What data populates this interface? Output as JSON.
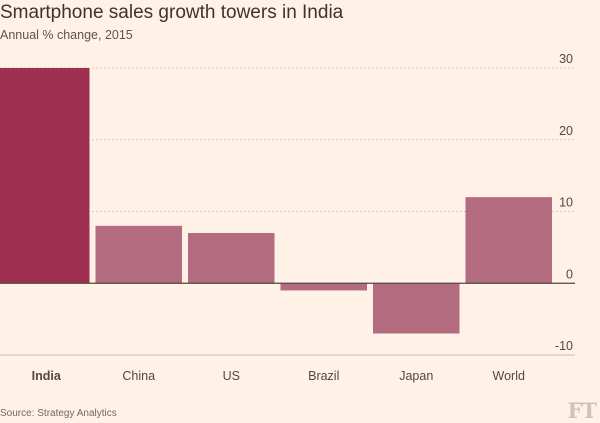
{
  "header": {
    "title": "Smartphone sales growth towers in India",
    "subtitle": "Annual % change, 2015"
  },
  "footer": {
    "source": "Source: Strategy Analytics",
    "logo": "FT"
  },
  "colors": {
    "background": "#fff1e5",
    "highlight_bar": "#9e2f50",
    "bar": "#b36b7f",
    "grid": "#c9bdb2",
    "zero_line": "#4d4845",
    "text": "#4d4845"
  },
  "chart_data": {
    "type": "bar",
    "categories": [
      "India",
      "China",
      "US",
      "Brazil",
      "Japan",
      "World"
    ],
    "values": [
      30,
      8,
      7,
      -1,
      -7,
      12
    ],
    "highlight_category": "India",
    "title": "Smartphone sales growth towers in India",
    "subtitle": "Annual % change, 2015",
    "xlabel": "",
    "ylabel": "",
    "ylim": [
      -10,
      30
    ],
    "yticks": [
      30,
      20,
      10,
      0,
      -10
    ],
    "ytick_labels": [
      "30",
      "20",
      "10",
      "0",
      "-10"
    ],
    "y_axis_side": "right",
    "grid": true
  }
}
